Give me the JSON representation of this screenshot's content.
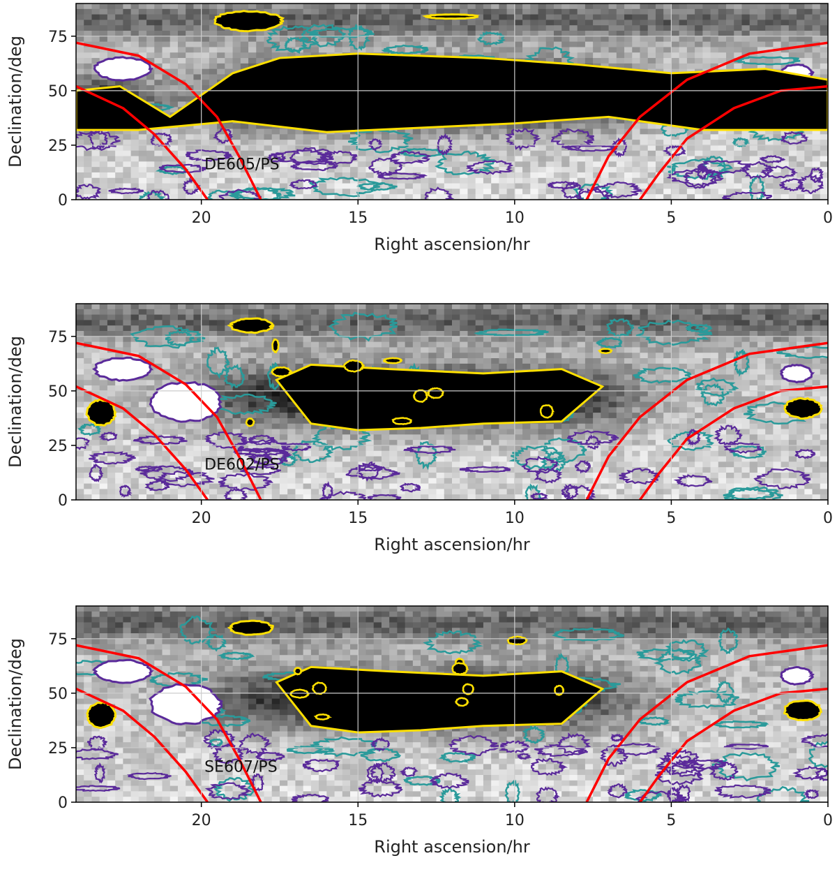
{
  "chart_data": [
    {
      "type": "heatmap",
      "annotation": "DE605/PS",
      "xlabel": "Right ascension/hr",
      "ylabel": "Declination/deg",
      "xlim": [
        24,
        0
      ],
      "ylim": [
        0,
        90
      ],
      "x_ticks": [
        20,
        15,
        10,
        5,
        0
      ],
      "y_ticks": [
        0,
        25,
        50,
        75
      ],
      "grid": true,
      "contour_colors": [
        "#ffe000",
        "#2a9a9a",
        "#5a2a9a"
      ],
      "boundary_curves": [
        {
          "color": "#ff0000",
          "x": [
            24,
            22,
            20.5,
            19.5,
            18.8,
            18.1
          ],
          "y": [
            72,
            66,
            53,
            38,
            20,
            0
          ]
        },
        {
          "color": "#ff0000",
          "x": [
            24,
            22.5,
            21.5,
            20.5,
            19.8
          ],
          "y": [
            52,
            42,
            30,
            14,
            0
          ]
        },
        {
          "color": "#ff0000",
          "x": [
            7.7,
            7.0,
            6.0,
            4.5,
            2.5,
            0
          ],
          "y": [
            0,
            20,
            38,
            55,
            67,
            72
          ]
        },
        {
          "color": "#ff0000",
          "x": [
            6.0,
            5.4,
            4.5,
            3.0,
            1.5,
            0
          ],
          "y": [
            0,
            12,
            28,
            42,
            50,
            52
          ]
        }
      ]
    },
    {
      "type": "heatmap",
      "annotation": "DE602/PS",
      "xlabel": "Right ascension/hr",
      "ylabel": "Declination/deg",
      "xlim": [
        24,
        0
      ],
      "ylim": [
        0,
        90
      ],
      "x_ticks": [
        20,
        15,
        10,
        5,
        0
      ],
      "y_ticks": [
        0,
        25,
        50,
        75
      ],
      "grid": true,
      "contour_colors": [
        "#ffe000",
        "#2a9a9a",
        "#5a2a9a"
      ],
      "boundary_curves": [
        {
          "color": "#ff0000",
          "x": [
            24,
            22,
            20.5,
            19.5,
            18.8,
            18.1
          ],
          "y": [
            72,
            66,
            53,
            38,
            20,
            0
          ]
        },
        {
          "color": "#ff0000",
          "x": [
            24,
            22.5,
            21.5,
            20.5,
            19.8
          ],
          "y": [
            52,
            42,
            30,
            14,
            0
          ]
        },
        {
          "color": "#ff0000",
          "x": [
            7.7,
            7.0,
            6.0,
            4.5,
            2.5,
            0
          ],
          "y": [
            0,
            20,
            38,
            55,
            67,
            72
          ]
        },
        {
          "color": "#ff0000",
          "x": [
            6.0,
            5.4,
            4.5,
            3.0,
            1.5,
            0
          ],
          "y": [
            0,
            12,
            28,
            42,
            50,
            52
          ]
        }
      ]
    },
    {
      "type": "heatmap",
      "annotation": "SE607/PS",
      "xlabel": "Right ascension/hr",
      "ylabel": "Declination/deg",
      "xlim": [
        24,
        0
      ],
      "ylim": [
        0,
        90
      ],
      "x_ticks": [
        20,
        15,
        10,
        5,
        0
      ],
      "y_ticks": [
        0,
        25,
        50,
        75
      ],
      "grid": true,
      "contour_colors": [
        "#ffe000",
        "#2a9a9a",
        "#5a2a9a"
      ],
      "boundary_curves": [
        {
          "color": "#ff0000",
          "x": [
            24,
            22,
            20.5,
            19.5,
            18.8,
            18.1
          ],
          "y": [
            72,
            66,
            53,
            38,
            20,
            0
          ]
        },
        {
          "color": "#ff0000",
          "x": [
            24,
            22.5,
            21.5,
            20.5,
            19.8
          ],
          "y": [
            52,
            42,
            30,
            14,
            0
          ]
        },
        {
          "color": "#ff0000",
          "x": [
            7.7,
            7.0,
            6.0,
            4.5,
            2.5,
            0
          ],
          "y": [
            0,
            20,
            38,
            55,
            67,
            72
          ]
        },
        {
          "color": "#ff0000",
          "x": [
            6.0,
            5.4,
            4.5,
            3.0,
            1.5,
            0
          ],
          "y": [
            0,
            12,
            28,
            42,
            50,
            52
          ]
        }
      ]
    }
  ]
}
